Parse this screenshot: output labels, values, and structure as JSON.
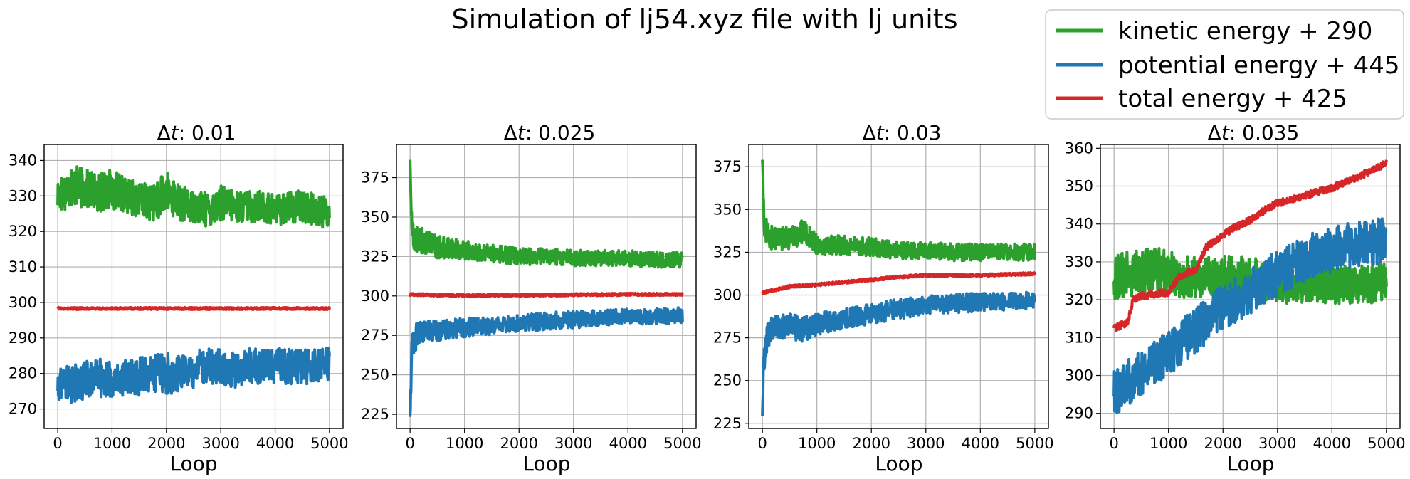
{
  "figure": {
    "title": "Simulation of lj54.xyz file with lj units",
    "legend": {
      "placement": "top-right",
      "entries": [
        {
          "label": "kinetic energy + 290",
          "color": "#2ca02c"
        },
        {
          "label": "potential energy + 445",
          "color": "#1f77b4"
        },
        {
          "label": "total energy + 425",
          "color": "#d62728"
        }
      ]
    }
  },
  "chart_data": [
    {
      "type": "line",
      "title_prefix": "Δ",
      "title_var": "t",
      "title_value": ": 0.01",
      "xlabel": "Loop",
      "ylabel": "",
      "grid": true,
      "xlim": [
        -250,
        5250
      ],
      "ylim": [
        264.5,
        344.5
      ],
      "xticks": [
        0,
        1000,
        2000,
        3000,
        4000,
        5000
      ],
      "yticks": [
        270,
        280,
        290,
        300,
        310,
        320,
        330,
        340
      ],
      "series": [
        {
          "name": "kinetic energy + 290",
          "color": "#2ca02c",
          "x": [
            0,
            250,
            500,
            750,
            1000,
            1250,
            1500,
            1750,
            2000,
            2250,
            2500,
            2750,
            3000,
            3250,
            3500,
            3750,
            4000,
            4250,
            4500,
            4750,
            5000
          ],
          "y": [
            330,
            333,
            332,
            331,
            332,
            330,
            329,
            328,
            331,
            328,
            327,
            326,
            328,
            327,
            327,
            327,
            326,
            327,
            327,
            326,
            325
          ],
          "band": [
            10,
            12,
            11,
            11,
            11,
            10,
            10,
            10,
            12,
            10,
            9,
            10,
            10,
            9,
            9,
            9,
            9,
            9,
            9,
            9,
            9
          ]
        },
        {
          "name": "potential energy + 445",
          "color": "#1f77b4",
          "x": [
            0,
            250,
            500,
            750,
            1000,
            1250,
            1500,
            1750,
            2000,
            2250,
            2500,
            2750,
            3000,
            3250,
            3500,
            3750,
            4000,
            4250,
            4500,
            4750,
            5000
          ],
          "y": [
            277,
            277,
            278,
            279,
            278,
            279,
            279,
            280,
            280,
            280,
            281,
            282,
            282,
            281,
            282,
            282,
            282,
            282,
            282,
            282,
            283
          ],
          "band": [
            9,
            11,
            11,
            11,
            10,
            10,
            11,
            10,
            12,
            10,
            10,
            11,
            10,
            10,
            10,
            10,
            10,
            10,
            10,
            10,
            10
          ]
        },
        {
          "name": "total energy + 425",
          "color": "#d62728",
          "x": [
            0,
            1000,
            2000,
            3000,
            4000,
            5000
          ],
          "y": [
            298.3,
            298.3,
            298.3,
            298.3,
            298.3,
            298.3
          ],
          "band": [
            0.6,
            0.6,
            0.6,
            0.6,
            0.6,
            0.6
          ]
        }
      ]
    },
    {
      "type": "line",
      "title_prefix": "Δ",
      "title_var": "t",
      "title_value": ": 0.025",
      "xlabel": "Loop",
      "ylabel": "",
      "grid": true,
      "xlim": [
        -250,
        5250
      ],
      "ylim": [
        216,
        396
      ],
      "xticks": [
        0,
        1000,
        2000,
        3000,
        4000,
        5000
      ],
      "yticks": [
        225,
        250,
        275,
        300,
        325,
        350,
        375
      ],
      "series": [
        {
          "name": "kinetic energy + 290",
          "color": "#2ca02c",
          "x": [
            0,
            30,
            60,
            120,
            250,
            500,
            750,
            1000,
            1500,
            2000,
            2500,
            3000,
            3500,
            4000,
            4500,
            5000
          ],
          "y": [
            386,
            345,
            338,
            336,
            335,
            331,
            330,
            329,
            327,
            325,
            325,
            324,
            324,
            324,
            323,
            323
          ],
          "band": [
            2,
            18,
            16,
            16,
            16,
            14,
            13,
            12,
            11,
            11,
            10,
            10,
            10,
            10,
            10,
            10
          ]
        },
        {
          "name": "potential energy + 445",
          "color": "#1f77b4",
          "x": [
            0,
            30,
            60,
            120,
            250,
            500,
            750,
            1000,
            1500,
            2000,
            2500,
            3000,
            3500,
            4000,
            4500,
            5000
          ],
          "y": [
            223,
            262,
            270,
            275,
            277,
            278,
            279,
            280,
            281,
            283,
            284,
            285,
            286,
            287,
            287,
            288
          ],
          "band": [
            2,
            22,
            18,
            16,
            14,
            13,
            12,
            12,
            11,
            11,
            11,
            11,
            10,
            10,
            10,
            10
          ]
        },
        {
          "name": "total energy + 425",
          "color": "#d62728",
          "x": [
            0,
            250,
            500,
            1000,
            2000,
            3000,
            4000,
            5000
          ],
          "y": [
            301,
            300.8,
            300.5,
            300.3,
            300.4,
            300.8,
            301,
            301
          ],
          "band": [
            1.5,
            1.5,
            1.5,
            1.5,
            1.5,
            1.5,
            1.5,
            1.5
          ]
        }
      ]
    },
    {
      "type": "line",
      "title_prefix": "Δ",
      "title_var": "t",
      "title_value": ": 0.03",
      "xlabel": "Loop",
      "ylabel": "",
      "grid": true,
      "xlim": [
        -250,
        5250
      ],
      "ylim": [
        222,
        388
      ],
      "xticks": [
        0,
        1000,
        2000,
        3000,
        4000,
        5000
      ],
      "yticks": [
        225,
        250,
        275,
        300,
        325,
        350,
        375
      ],
      "series": [
        {
          "name": "kinetic energy + 290",
          "color": "#2ca02c",
          "x": [
            0,
            30,
            60,
            120,
            250,
            500,
            750,
            1000,
            1500,
            2000,
            2500,
            3000,
            3500,
            4000,
            4500,
            5000
          ],
          "y": [
            380,
            345,
            338,
            334,
            333,
            333,
            337,
            330,
            329,
            328,
            326,
            326,
            325,
            325,
            325,
            325
          ],
          "band": [
            2,
            18,
            15,
            14,
            14,
            13,
            14,
            12,
            11,
            11,
            10,
            10,
            10,
            10,
            10,
            10
          ]
        },
        {
          "name": "potential energy + 445",
          "color": "#1f77b4",
          "x": [
            0,
            30,
            60,
            120,
            250,
            500,
            750,
            1000,
            1500,
            2000,
            2500,
            3000,
            3500,
            4000,
            4500,
            5000
          ],
          "y": [
            230,
            265,
            272,
            278,
            281,
            282,
            280,
            283,
            286,
            289,
            292,
            294,
            295,
            296,
            296,
            297
          ],
          "band": [
            2,
            22,
            18,
            16,
            14,
            14,
            16,
            13,
            12,
            12,
            12,
            11,
            11,
            11,
            10,
            10
          ]
        },
        {
          "name": "total energy + 425",
          "color": "#d62728",
          "x": [
            0,
            250,
            500,
            1000,
            1500,
            2000,
            2500,
            3000,
            3500,
            4000,
            4500,
            5000
          ],
          "y": [
            301.5,
            303,
            305,
            306,
            307.5,
            309,
            310.5,
            311.5,
            311.5,
            311.5,
            312,
            312.5
          ],
          "band": [
            1.5,
            1.5,
            1.5,
            1.5,
            1.5,
            1.5,
            1.5,
            1.5,
            1.5,
            1.5,
            1.5,
            1.5
          ]
        }
      ]
    },
    {
      "type": "line",
      "title_prefix": "Δ",
      "title_var": "t",
      "title_value": ": 0.035",
      "xlabel": "Loop",
      "ylabel": "",
      "grid": true,
      "xlim": [
        -250,
        5250
      ],
      "ylim": [
        286,
        361
      ],
      "xticks": [
        0,
        1000,
        2000,
        3000,
        4000,
        5000
      ],
      "yticks": [
        290,
        300,
        310,
        320,
        330,
        340,
        350,
        360
      ],
      "series": [
        {
          "name": "kinetic energy + 290",
          "color": "#2ca02c",
          "x": [
            0,
            250,
            500,
            750,
            1000,
            1250,
            1500,
            1750,
            2000,
            2250,
            2500,
            2750,
            3000,
            3250,
            3500,
            3750,
            4000,
            4250,
            4500,
            4750,
            5000
          ],
          "y": [
            326,
            327,
            327,
            328,
            327,
            326,
            326,
            326,
            326,
            326,
            326,
            325,
            324,
            324,
            324,
            324,
            324,
            324,
            324,
            324,
            325
          ],
          "band": [
            12,
            12,
            12,
            12,
            12,
            11,
            11,
            11,
            11,
            11,
            11,
            10,
            10,
            10,
            10,
            10,
            10,
            10,
            10,
            10,
            10
          ]
        },
        {
          "name": "potential energy + 445",
          "color": "#1f77b4",
          "x": [
            0,
            250,
            500,
            750,
            1000,
            1250,
            1500,
            1750,
            2000,
            2250,
            2500,
            2750,
            3000,
            3250,
            3500,
            3750,
            4000,
            4250,
            4500,
            4750,
            5000
          ],
          "y": [
            295,
            298,
            301,
            303,
            306,
            309,
            312,
            315,
            318,
            320,
            322,
            325,
            327,
            329,
            331,
            332,
            333,
            334,
            335,
            335,
            336
          ],
          "band": [
            12,
            12,
            12,
            12,
            12,
            12,
            12,
            12,
            12,
            12,
            12,
            12,
            12,
            12,
            12,
            12,
            12,
            12,
            12,
            12,
            12
          ]
        },
        {
          "name": "total energy + 425",
          "color": "#d62728",
          "x": [
            0,
            250,
            350,
            500,
            1000,
            1200,
            1500,
            1700,
            2000,
            2200,
            2500,
            2800,
            3000,
            3500,
            4000,
            4500,
            5000
          ],
          "y": [
            312.5,
            314,
            320,
            321,
            322,
            326,
            328,
            334,
            337,
            339,
            341,
            344,
            345.5,
            347.5,
            349.5,
            352.5,
            356
          ],
          "band": [
            1.8,
            1.8,
            1.8,
            1.8,
            1.8,
            1.8,
            1.8,
            1.8,
            1.8,
            1.8,
            1.8,
            1.8,
            1.8,
            1.8,
            1.8,
            1.8,
            1.8
          ]
        }
      ]
    }
  ]
}
